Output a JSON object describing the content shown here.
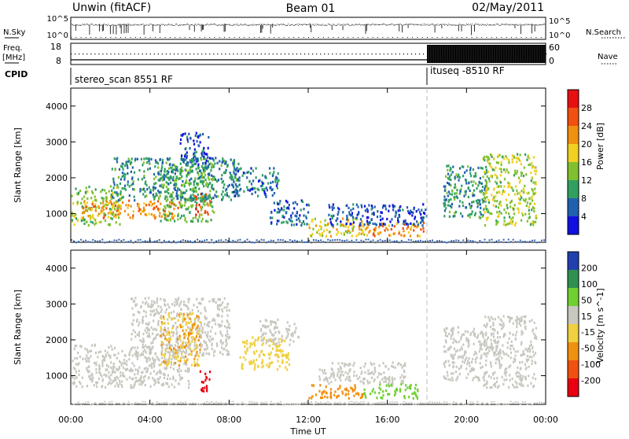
{
  "header": {
    "station": "Unwin (fitACF)",
    "beam": "Beam 01",
    "date": "02/May/2011"
  },
  "summary_panels": {
    "nsky_label": "N.Sky",
    "nsky_ticks": [
      "10^5",
      "10^0"
    ],
    "nsearch_label": "N.Search",
    "nsearch_ticks": [
      "10^5",
      "10^0"
    ],
    "freq_label_line1": "Freq.",
    "freq_label_line2": "[MHz]",
    "freq_ticks": [
      "18",
      "8"
    ],
    "nave_label": "Nave",
    "nave_ticks": [
      "60",
      "0"
    ],
    "cpid_label": "CPID",
    "cpid_segments": [
      "stereo_scan 8551 RF",
      "ituseq -8510 RF"
    ]
  },
  "chart_data": [
    {
      "type": "heatmap",
      "name": "Power",
      "ylabel": "Slant Range [km]",
      "ylim": [
        200,
        4500
      ],
      "yticks": [
        "1000",
        "2000",
        "3000",
        "4000"
      ],
      "colorbar_label": "Power [dB]",
      "colorbar_ticks": [
        "4",
        "8",
        "12",
        "16",
        "20",
        "24",
        "28"
      ],
      "colorbar_range": [
        0,
        32
      ],
      "colors": [
        "#1010e0",
        "#2060b0",
        "#30a060",
        "#80c030",
        "#f0d020",
        "#f09010",
        "#f05010",
        "#e81010"
      ],
      "regions": [
        {
          "t0": 0.0,
          "t1": 2.5,
          "r0": 700,
          "r1": 1800,
          "v": 14
        },
        {
          "t0": 0.5,
          "t1": 5.5,
          "r0": 900,
          "r1": 1400,
          "v": 22
        },
        {
          "t0": 4.5,
          "t1": 7.2,
          "r0": 800,
          "r1": 2400,
          "v": 12
        },
        {
          "t0": 6.2,
          "t1": 7.0,
          "r0": 1000,
          "r1": 1600,
          "v": 26
        },
        {
          "t0": 2.0,
          "t1": 8.5,
          "r0": 1400,
          "r1": 2600,
          "v": 9
        },
        {
          "t0": 5.5,
          "t1": 7.0,
          "r0": 2400,
          "r1": 3300,
          "v": 5
        },
        {
          "t0": 8.0,
          "t1": 10.5,
          "r0": 1500,
          "r1": 2300,
          "v": 7
        },
        {
          "t0": 10.0,
          "t1": 12.0,
          "r0": 700,
          "r1": 1400,
          "v": 6
        },
        {
          "t0": 12.0,
          "t1": 14.8,
          "r0": 400,
          "r1": 900,
          "v": 18
        },
        {
          "t0": 14.5,
          "t1": 17.8,
          "r0": 400,
          "r1": 800,
          "v": 22
        },
        {
          "t0": 13.0,
          "t1": 18.0,
          "r0": 700,
          "r1": 1300,
          "v": 5
        },
        {
          "t0": 18.8,
          "t1": 21.0,
          "r0": 900,
          "r1": 2400,
          "v": 9
        },
        {
          "t0": 20.8,
          "t1": 23.5,
          "r0": 700,
          "r1": 2700,
          "v": 15
        }
      ]
    },
    {
      "type": "heatmap",
      "name": "Velocity",
      "ylabel": "Slant Range [km]",
      "ylim": [
        200,
        4500
      ],
      "yticks": [
        "1000",
        "2000",
        "3000",
        "4000"
      ],
      "colorbar_label": "Velocity [m s^-1]",
      "colorbar_ticks": [
        "-200",
        "-100",
        "-50",
        "-15",
        "15",
        "50",
        "100",
        "200"
      ],
      "colorbar_range": [
        -250,
        250
      ],
      "colors": [
        "#e80010",
        "#f05010",
        "#f09010",
        "#f0d040",
        "#c8c8c0",
        "#70d030",
        "#309050",
        "#2040b0"
      ],
      "regions": [
        {
          "t0": 0.0,
          "t1": 6.0,
          "r0": 700,
          "r1": 1900,
          "v": 0
        },
        {
          "t0": 3.0,
          "t1": 8.0,
          "r0": 1600,
          "r1": 3200,
          "v": 0
        },
        {
          "t0": 4.5,
          "t1": 6.5,
          "r0": 1300,
          "r1": 2800,
          "v": -60
        },
        {
          "t0": 6.5,
          "t1": 7.0,
          "r0": 600,
          "r1": 1200,
          "v": -220
        },
        {
          "t0": 8.5,
          "t1": 11.0,
          "r0": 1200,
          "r1": 2100,
          "v": -30
        },
        {
          "t0": 9.5,
          "t1": 11.5,
          "r0": 1900,
          "r1": 2600,
          "v": 0
        },
        {
          "t0": 12.0,
          "t1": 14.8,
          "r0": 400,
          "r1": 800,
          "v": -90
        },
        {
          "t0": 14.8,
          "t1": 17.5,
          "r0": 400,
          "r1": 800,
          "v": 80
        },
        {
          "t0": 12.5,
          "t1": 17.0,
          "r0": 800,
          "r1": 1400,
          "v": 0
        },
        {
          "t0": 18.8,
          "t1": 21.0,
          "r0": 900,
          "r1": 2400,
          "v": 30
        },
        {
          "t0": 20.8,
          "t1": 23.5,
          "r0": 700,
          "r1": 2700,
          "v": 0
        }
      ]
    }
  ],
  "time_axis": {
    "xlabel": "Time UT",
    "ticks": [
      "00:00",
      "04:00",
      "08:00",
      "12:00",
      "16:00",
      "20:00",
      "00:00"
    ],
    "range_hours": [
      0,
      24
    ],
    "mode_change_hour": 18.0
  }
}
